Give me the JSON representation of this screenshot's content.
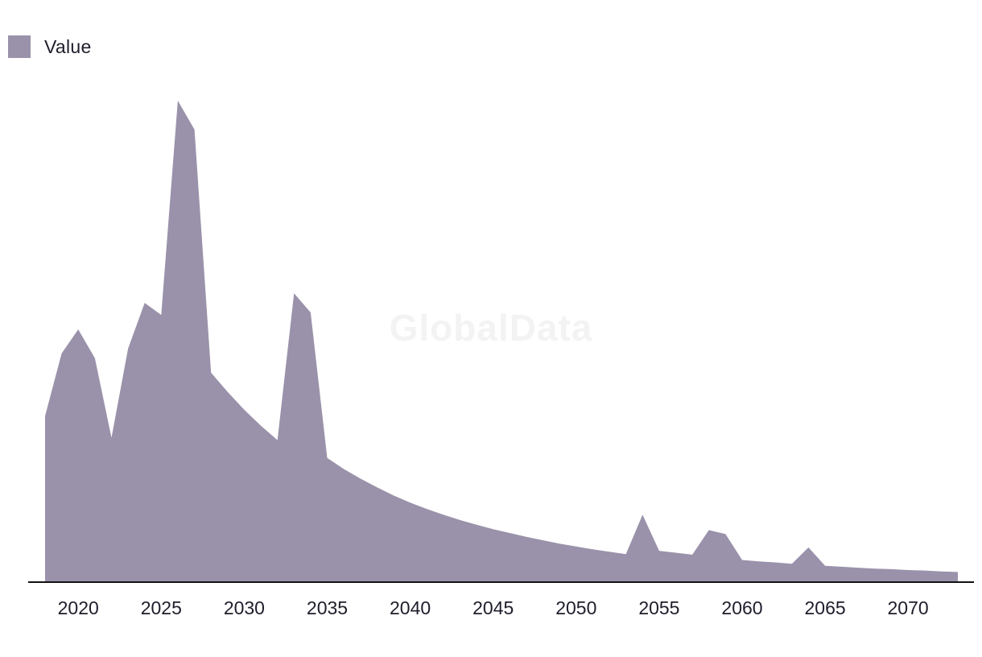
{
  "watermark": "GlobalData",
  "legend": {
    "label": "Value"
  },
  "colors": {
    "area": "#9a92aa",
    "axis": "#111111",
    "text": "#1f1d2b"
  },
  "chart_data": {
    "type": "area",
    "title": "",
    "xlabel": "",
    "ylabel": "",
    "legend_position": "top-left",
    "grid": false,
    "y_axis_visible": false,
    "series": [
      {
        "name": "Value",
        "x": [
          2018,
          2019,
          2020,
          2021,
          2022,
          2023,
          2024,
          2025,
          2026,
          2027,
          2028,
          2029,
          2030,
          2031,
          2032,
          2033,
          2034,
          2035,
          2036,
          2037,
          2038,
          2039,
          2040,
          2041,
          2042,
          2043,
          2044,
          2045,
          2046,
          2047,
          2048,
          2049,
          2050,
          2051,
          2052,
          2053,
          2054,
          2055,
          2056,
          2057,
          2058,
          2059,
          2060,
          2061,
          2062,
          2063,
          2064,
          2065,
          2066,
          2067,
          2068,
          2069,
          2070,
          2071,
          2072,
          2073
        ],
        "values": [
          34.5,
          47.5,
          52.5,
          46.5,
          30.0,
          48.5,
          58.0,
          55.5,
          100.0,
          94.0,
          43.5,
          39.5,
          35.8,
          32.5,
          29.5,
          60.0,
          56.0,
          25.8,
          23.5,
          21.5,
          19.7,
          18.0,
          16.5,
          15.2,
          14.0,
          12.9,
          11.9,
          11.0,
          10.2,
          9.4,
          8.7,
          8.0,
          7.4,
          6.8,
          6.3,
          5.8,
          14.0,
          6.5,
          6.1,
          5.7,
          10.8,
          10.0,
          4.6,
          4.3,
          4.1,
          3.8,
          7.2,
          3.4,
          3.2,
          3.0,
          2.8,
          2.7,
          2.5,
          2.4,
          2.2,
          2.1
        ]
      }
    ],
    "x_ticks": [
      "2020",
      "2025",
      "2030",
      "2035",
      "2040",
      "2045",
      "2050",
      "2055",
      "2060",
      "2065",
      "2070"
    ],
    "xlim": [
      2018,
      2073
    ],
    "ylim": [
      0,
      100
    ]
  }
}
